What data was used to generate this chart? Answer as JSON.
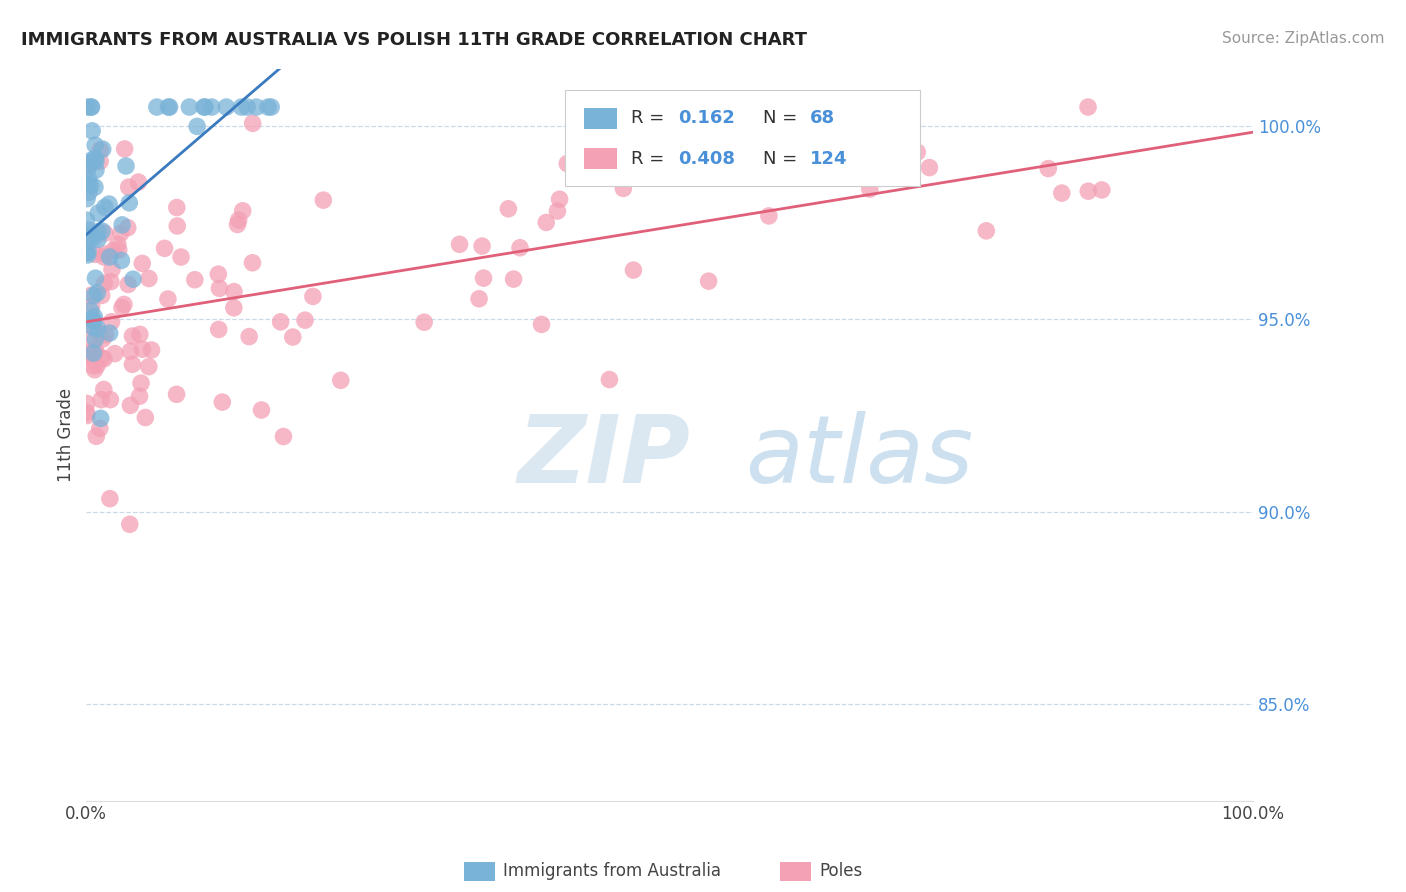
{
  "title": "IMMIGRANTS FROM AUSTRALIA VS POLISH 11TH GRADE CORRELATION CHART",
  "source": "Source: ZipAtlas.com",
  "ylabel": "11th Grade",
  "legend_label1": "Immigrants from Australia",
  "legend_label2": "Poles",
  "R1": 0.162,
  "N1": 68,
  "R2": 0.408,
  "N2": 124,
  "color_blue": "#7ab3d8",
  "color_pink": "#f4a0b5",
  "color_line_blue": "#3a7abf",
  "color_line_pink": "#e0607a",
  "color_ytick": "#4a90d9",
  "color_grid": "#c8daea",
  "ytick_labels": [
    "85.0%",
    "90.0%",
    "95.0%",
    "100.0%"
  ],
  "ytick_values": [
    0.85,
    0.9,
    0.95,
    1.0
  ],
  "xlim": [
    0.0,
    1.0
  ],
  "ylim": [
    0.825,
    1.015
  ],
  "watermark_zip": "ZIP",
  "watermark_atlas": "atlas",
  "title_fontsize": 13,
  "source_fontsize": 11
}
